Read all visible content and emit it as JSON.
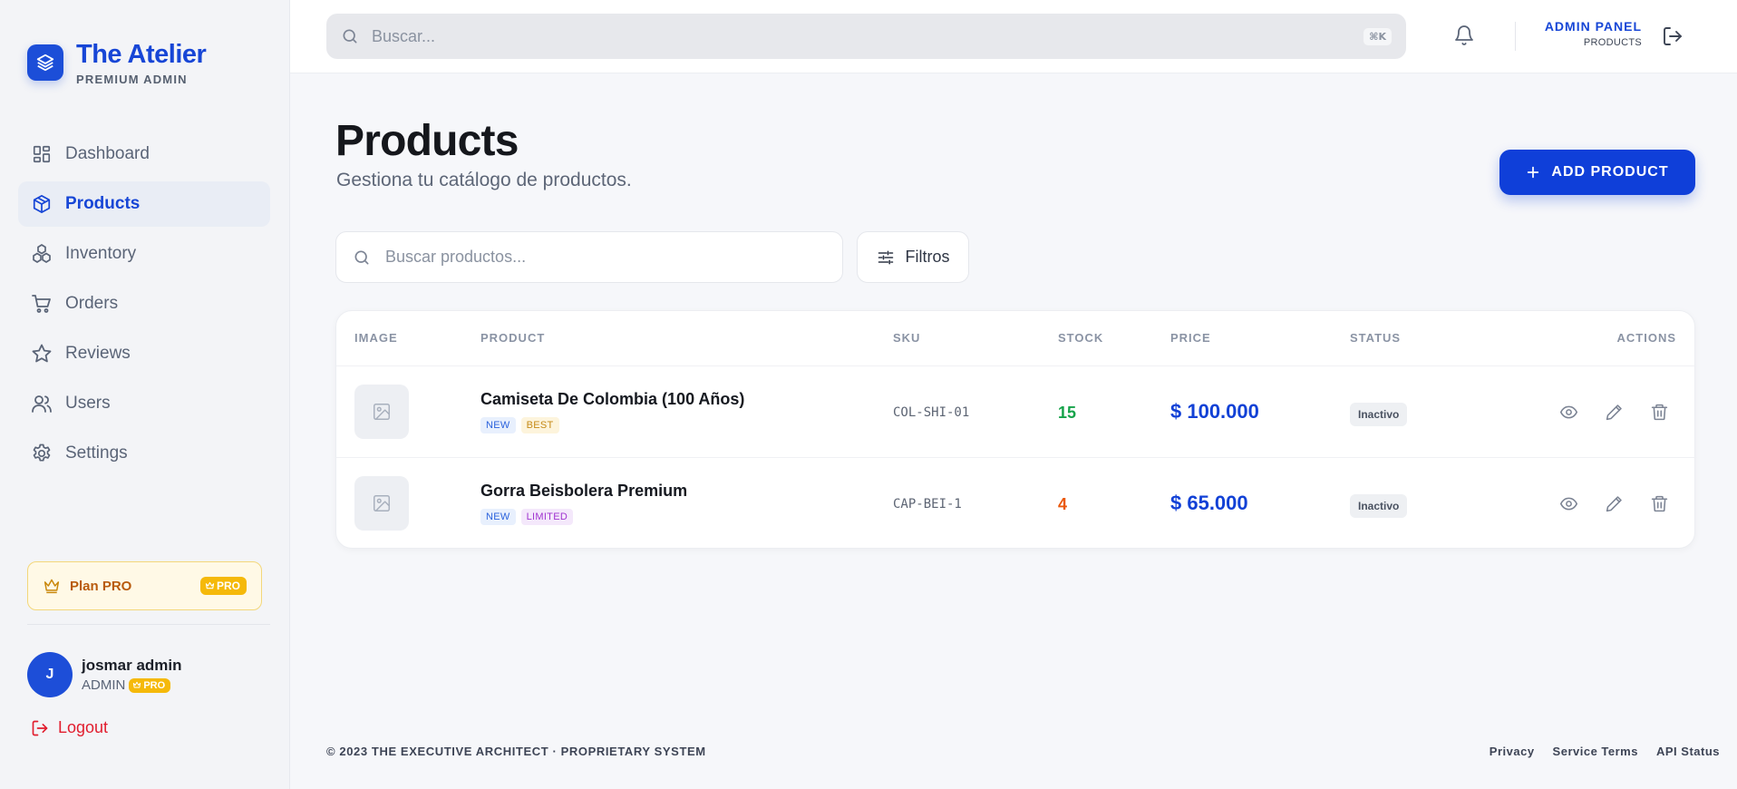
{
  "brand": {
    "title": "The Atelier",
    "subtitle": "PREMIUM ADMIN"
  },
  "sidebar": {
    "items": [
      {
        "label": "Dashboard",
        "icon": "grid-icon",
        "active": false
      },
      {
        "label": "Products",
        "icon": "box-icon",
        "active": true
      },
      {
        "label": "Inventory",
        "icon": "boxes-icon",
        "active": false
      },
      {
        "label": "Orders",
        "icon": "cart-icon",
        "active": false
      },
      {
        "label": "Reviews",
        "icon": "star-icon",
        "active": false
      },
      {
        "label": "Users",
        "icon": "users-icon",
        "active": false
      },
      {
        "label": "Settings",
        "icon": "gear-icon",
        "active": false
      }
    ],
    "plan": {
      "label": "Plan PRO",
      "badge": "PRO"
    },
    "user": {
      "initial": "J",
      "name": "josmar admin",
      "role": "ADMIN",
      "badge": "PRO"
    },
    "logout": "Logout"
  },
  "topbar": {
    "search_placeholder": "Buscar...",
    "shortcut": "⌘K",
    "panel_title": "ADMIN PANEL",
    "panel_sub": "PRODUCTS"
  },
  "main": {
    "title": "Products",
    "subtitle": "Gestiona tu catálogo de productos.",
    "add_button": "ADD PRODUCT",
    "search_placeholder": "Buscar productos...",
    "filter_label": "Filtros",
    "columns": [
      "IMAGE",
      "PRODUCT",
      "SKU",
      "STOCK",
      "PRICE",
      "STATUS",
      "ACTIONS"
    ],
    "products": [
      {
        "name": "Camiseta De Colombia (100 Años)",
        "tags": [
          "NEW",
          "BEST"
        ],
        "sku": "COL-SHI-01",
        "stock": "15",
        "price": "$ 100.000",
        "status": "Inactivo"
      },
      {
        "name": "Gorra Beisbolera Premium",
        "tags": [
          "NEW",
          "LIMITED"
        ],
        "sku": "CAP-BEI-1",
        "stock": "4",
        "price": "$ 65.000",
        "status": "Inactivo"
      }
    ]
  },
  "footer": {
    "copyright": "© 2023 THE EXECUTIVE ARCHITECT · PROPRIETARY SYSTEM",
    "links": [
      "Privacy",
      "Service Terms",
      "API Status"
    ]
  },
  "colors": {
    "accent": "#1746d6",
    "stock_ok": "#16a34a",
    "stock_low": "#ea580c",
    "logout": "#e11d2e",
    "pro": "#f5b90a"
  }
}
